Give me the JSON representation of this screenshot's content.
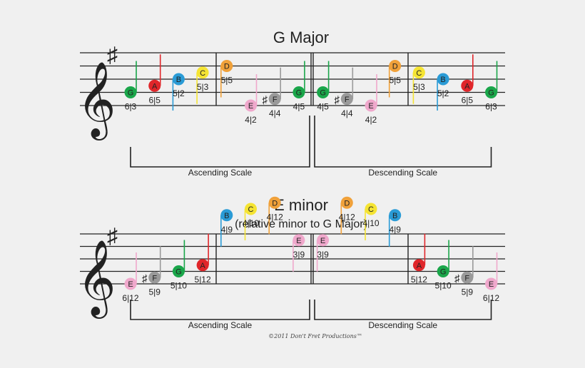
{
  "colors": {
    "G": "#1aa64a",
    "A": "#e0262a",
    "B": "#2a9bd6",
    "C": "#f5e433",
    "D": "#f0a13a",
    "E": "#f0a8cc",
    "F": "#9a9a9a",
    "staff": "#222222",
    "background": "#f0f0f0"
  },
  "clef_icon": "treble-clef-icon",
  "sharp_symbol": "♯",
  "top": {
    "title": "G Major",
    "notes": [
      {
        "n": "G",
        "pos": "6|3"
      },
      {
        "n": "A",
        "pos": "6|5"
      },
      {
        "n": "B",
        "pos": "5|2"
      },
      {
        "n": "C",
        "pos": "5|3"
      },
      {
        "n": "D",
        "pos": "5|5"
      },
      {
        "n": "E",
        "pos": "4|2"
      },
      {
        "n": "F",
        "pos": "4|4",
        "sharp": true
      },
      {
        "n": "G",
        "pos": "4|5"
      },
      {
        "n": "G",
        "pos": "4|5"
      },
      {
        "n": "F",
        "pos": "4|4",
        "sharp": true
      },
      {
        "n": "E",
        "pos": "4|2"
      },
      {
        "n": "D",
        "pos": "5|5"
      },
      {
        "n": "C",
        "pos": "5|3"
      },
      {
        "n": "B",
        "pos": "5|2"
      },
      {
        "n": "A",
        "pos": "6|5"
      },
      {
        "n": "G",
        "pos": "6|3"
      }
    ],
    "ascending": "Ascending Scale",
    "descending": "Descending Scale"
  },
  "bottom": {
    "title": "E minor",
    "subtitle": "(relative minor to G Major)",
    "notes": [
      {
        "n": "E",
        "pos": "6|12"
      },
      {
        "n": "F",
        "pos": "5|9",
        "sharp": true
      },
      {
        "n": "G",
        "pos": "5|10"
      },
      {
        "n": "A",
        "pos": "5|12"
      },
      {
        "n": "B",
        "pos": "4|9"
      },
      {
        "n": "C",
        "pos": "4|10"
      },
      {
        "n": "D",
        "pos": "4|12"
      },
      {
        "n": "E",
        "pos": "3|9"
      },
      {
        "n": "E",
        "pos": "3|9"
      },
      {
        "n": "D",
        "pos": "4|12"
      },
      {
        "n": "C",
        "pos": "4|10"
      },
      {
        "n": "B",
        "pos": "4|9"
      },
      {
        "n": "A",
        "pos": "5|12"
      },
      {
        "n": "G",
        "pos": "5|10"
      },
      {
        "n": "F",
        "pos": "5|9",
        "sharp": true
      },
      {
        "n": "E",
        "pos": "6|12"
      }
    ],
    "ascending": "Ascending Scale",
    "descending": "Descending Scale"
  },
  "copyright": "©2011 Don't Fret Productions™"
}
